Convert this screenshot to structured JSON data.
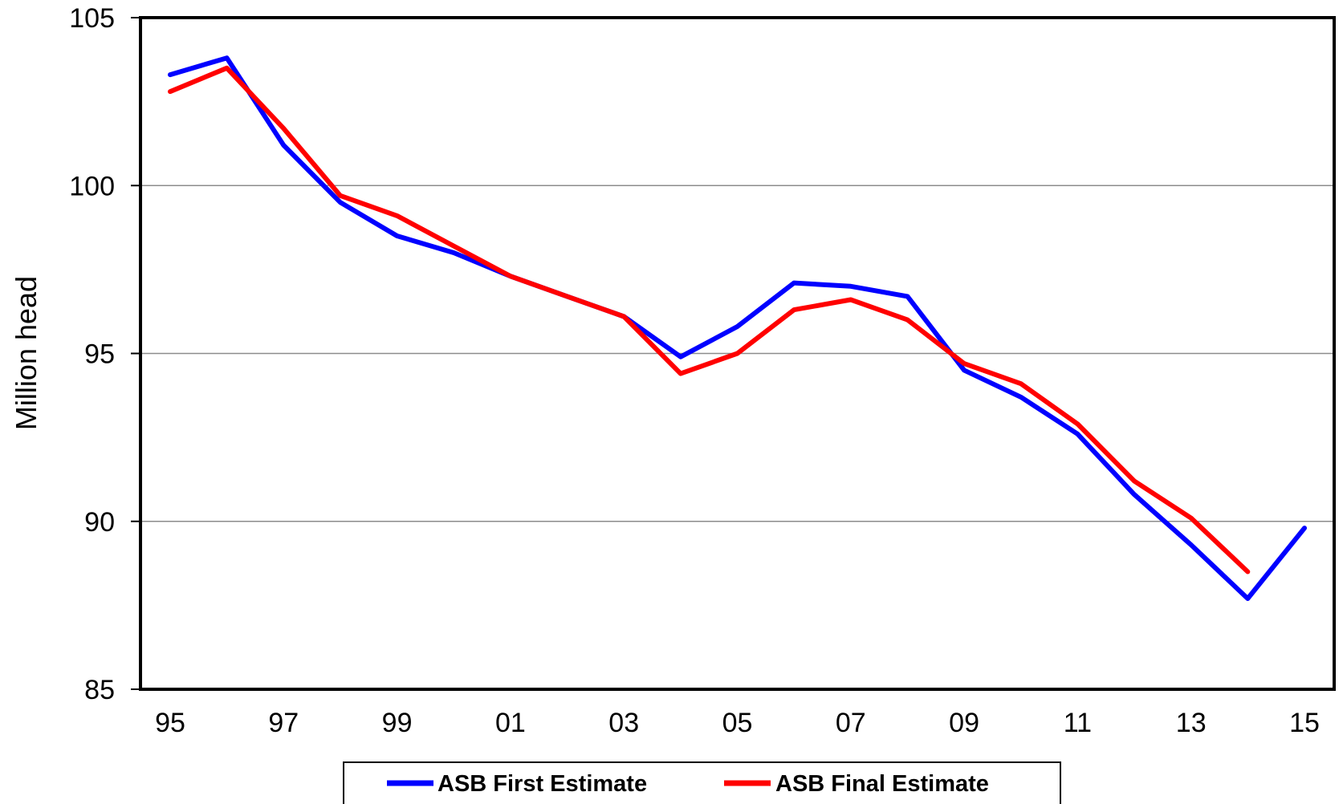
{
  "chart_data": {
    "type": "line",
    "title": "",
    "xlabel": "",
    "ylabel": "Million head",
    "ylim": [
      85,
      105
    ],
    "yticks": [
      85,
      90,
      95,
      100,
      105
    ],
    "xlim": [
      1995,
      2015
    ],
    "xtick_labels": [
      "95",
      "97",
      "99",
      "01",
      "03",
      "05",
      "07",
      "09",
      "11",
      "13",
      "15"
    ],
    "grid": true,
    "legend_position": "bottom",
    "series": [
      {
        "name": "ASB First Estimate",
        "color": "#0000ff",
        "x": [
          1995,
          1996,
          1997,
          1998,
          1999,
          2000,
          2001,
          2002,
          2003,
          2004,
          2005,
          2006,
          2007,
          2008,
          2009,
          2010,
          2011,
          2012,
          2013,
          2014,
          2015
        ],
        "values": [
          103.3,
          103.8,
          101.2,
          99.5,
          98.5,
          98.0,
          97.3,
          96.7,
          96.1,
          94.9,
          95.8,
          97.1,
          97.0,
          96.7,
          94.5,
          93.7,
          92.6,
          90.8,
          89.3,
          87.7,
          89.8
        ]
      },
      {
        "name": "ASB Final Estimate",
        "color": "#ff0000",
        "x": [
          1995,
          1996,
          1997,
          1998,
          1999,
          2000,
          2001,
          2002,
          2003,
          2004,
          2005,
          2006,
          2007,
          2008,
          2009,
          2010,
          2011,
          2012,
          2013,
          2014
        ],
        "values": [
          102.8,
          103.5,
          101.7,
          99.7,
          99.1,
          98.2,
          97.3,
          96.7,
          96.1,
          94.4,
          95.0,
          96.3,
          96.6,
          96.0,
          94.7,
          94.1,
          92.9,
          91.2,
          90.1,
          88.5
        ]
      }
    ]
  }
}
